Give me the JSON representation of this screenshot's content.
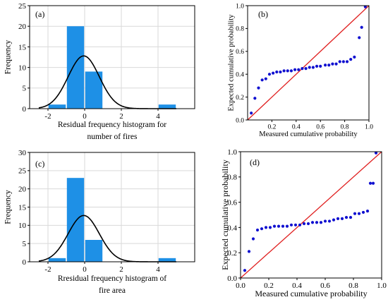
{
  "chart_data": [
    {
      "panel": "(a)",
      "type": "bar",
      "xlabel": "Residual frequency histogram for\nnumber of fires",
      "ylabel": "Frequency",
      "xlim": [
        -3,
        6
      ],
      "ylim": [
        0,
        25
      ],
      "xticks": [
        -2,
        0,
        2,
        4
      ],
      "yticks": [
        0,
        5,
        10,
        15,
        20,
        25
      ],
      "grid": true,
      "bins": [
        {
          "x0": -2,
          "x1": -1,
          "value": 1
        },
        {
          "x0": -1,
          "x1": 0,
          "value": 20
        },
        {
          "x0": 0,
          "x1": 1,
          "value": 9
        },
        {
          "x0": 1,
          "x1": 2,
          "value": 0
        },
        {
          "x0": 2,
          "x1": 3,
          "value": 0
        },
        {
          "x0": 3,
          "x1": 4,
          "value": 0
        },
        {
          "x0": 4,
          "x1": 5,
          "value": 1
        }
      ],
      "curve": {
        "type": "normal",
        "mean": -0.05,
        "sd": 0.85,
        "peak": 12.8
      },
      "bar_color": "#1e90e6",
      "curve_color": "#000000"
    },
    {
      "panel": "(b)",
      "type": "scatter",
      "xlabel": "Measured cumulative probability",
      "ylabel": "Expected cumulative probability",
      "xlim": [
        0,
        1
      ],
      "ylim": [
        0,
        1
      ],
      "xticks": [
        0.2,
        0.4,
        0.6,
        0.8,
        1.0
      ],
      "yticks": [
        0,
        0.2,
        0.4,
        0.6,
        0.8,
        1.0
      ],
      "tick_format": 1,
      "grid": false,
      "points": [
        [
          0.03,
          0.06
        ],
        [
          0.06,
          0.19
        ],
        [
          0.09,
          0.28
        ],
        [
          0.12,
          0.35
        ],
        [
          0.15,
          0.36
        ],
        [
          0.18,
          0.4
        ],
        [
          0.21,
          0.41
        ],
        [
          0.24,
          0.42
        ],
        [
          0.27,
          0.42
        ],
        [
          0.3,
          0.43
        ],
        [
          0.33,
          0.43
        ],
        [
          0.36,
          0.43
        ],
        [
          0.39,
          0.44
        ],
        [
          0.42,
          0.44
        ],
        [
          0.45,
          0.45
        ],
        [
          0.48,
          0.45
        ],
        [
          0.51,
          0.46
        ],
        [
          0.54,
          0.46
        ],
        [
          0.57,
          0.47
        ],
        [
          0.6,
          0.47
        ],
        [
          0.64,
          0.48
        ],
        [
          0.67,
          0.48
        ],
        [
          0.7,
          0.49
        ],
        [
          0.73,
          0.49
        ],
        [
          0.76,
          0.51
        ],
        [
          0.79,
          0.51
        ],
        [
          0.82,
          0.51
        ],
        [
          0.85,
          0.53
        ],
        [
          0.88,
          0.55
        ],
        [
          0.92,
          0.72
        ],
        [
          0.94,
          0.81
        ],
        [
          0.97,
          0.99
        ]
      ],
      "reference_line": [
        [
          0,
          0
        ],
        [
          1,
          1
        ]
      ],
      "point_color": "#1010d0",
      "line_color": "#e02020"
    },
    {
      "panel": "(c)",
      "type": "bar",
      "xlabel": "Rresidual frequency histogram of\nfire area",
      "ylabel": "Frequency",
      "xlim": [
        -3,
        6
      ],
      "ylim": [
        0,
        30
      ],
      "xticks": [
        -2,
        0,
        2,
        4
      ],
      "yticks": [
        0,
        5,
        10,
        15,
        20,
        25,
        30
      ],
      "grid": true,
      "bins": [
        {
          "x0": -2,
          "x1": -1,
          "value": 1
        },
        {
          "x0": -1,
          "x1": 0,
          "value": 23
        },
        {
          "x0": 0,
          "x1": 1,
          "value": 6
        },
        {
          "x0": 1,
          "x1": 2,
          "value": 0
        },
        {
          "x0": 2,
          "x1": 3,
          "value": 0
        },
        {
          "x0": 3,
          "x1": 4,
          "value": 0
        },
        {
          "x0": 4,
          "x1": 5,
          "value": 1
        }
      ],
      "curve": {
        "type": "normal",
        "mean": -0.05,
        "sd": 0.85,
        "peak": 12.7
      },
      "bar_color": "#1e90e6",
      "curve_color": "#000000"
    },
    {
      "panel": "(d)",
      "type": "scatter",
      "xlabel": "Measured cumulative probability",
      "ylabel": "Expected cumulative probability",
      "xlim": [
        0,
        1
      ],
      "ylim": [
        0,
        1
      ],
      "xticks": [
        0,
        0.2,
        0.4,
        0.6,
        0.8,
        1.0
      ],
      "yticks": [
        0,
        0.2,
        0.4,
        0.6,
        0.8,
        1.0
      ],
      "tick_format": 1,
      "grid": false,
      "points": [
        [
          0.03,
          0.06
        ],
        [
          0.06,
          0.21
        ],
        [
          0.09,
          0.31
        ],
        [
          0.12,
          0.38
        ],
        [
          0.15,
          0.39
        ],
        [
          0.18,
          0.4
        ],
        [
          0.21,
          0.4
        ],
        [
          0.24,
          0.41
        ],
        [
          0.27,
          0.41
        ],
        [
          0.3,
          0.41
        ],
        [
          0.33,
          0.41
        ],
        [
          0.36,
          0.42
        ],
        [
          0.39,
          0.42
        ],
        [
          0.42,
          0.42
        ],
        [
          0.45,
          0.43
        ],
        [
          0.48,
          0.43
        ],
        [
          0.51,
          0.44
        ],
        [
          0.54,
          0.44
        ],
        [
          0.57,
          0.44
        ],
        [
          0.6,
          0.45
        ],
        [
          0.63,
          0.45
        ],
        [
          0.66,
          0.46
        ],
        [
          0.69,
          0.47
        ],
        [
          0.72,
          0.47
        ],
        [
          0.75,
          0.48
        ],
        [
          0.78,
          0.48
        ],
        [
          0.81,
          0.51
        ],
        [
          0.84,
          0.51
        ],
        [
          0.87,
          0.52
        ],
        [
          0.9,
          0.53
        ],
        [
          0.92,
          0.75
        ],
        [
          0.94,
          0.75
        ],
        [
          0.96,
          0.99
        ]
      ],
      "reference_line": [
        [
          0,
          0
        ],
        [
          1,
          1
        ]
      ],
      "point_color": "#1010d0",
      "line_color": "#e02020"
    }
  ]
}
